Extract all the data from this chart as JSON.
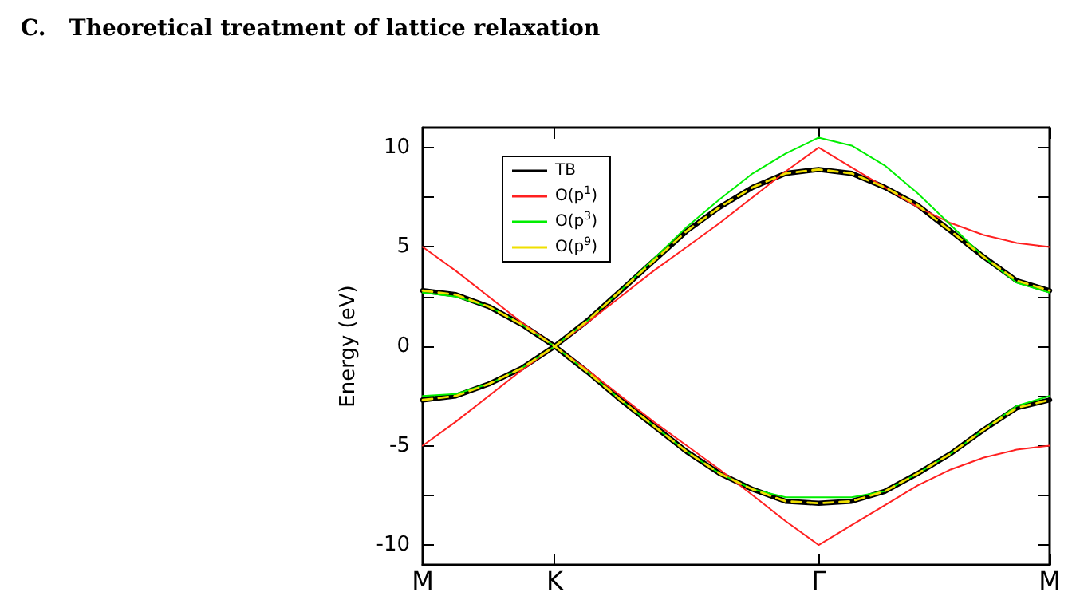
{
  "chart_data": {
    "type": "line",
    "title": "C.   Theoretical treatment of lattice relaxation",
    "ylabel": "Energy (eV)",
    "categories": [
      "M",
      null,
      null,
      null,
      "K",
      null,
      null,
      null,
      null,
      null,
      null,
      null,
      "Γ",
      null,
      null,
      null,
      null,
      null,
      null,
      "M"
    ],
    "series": [
      {
        "name": "TB",
        "color": "#000000",
        "line_style": "solid",
        "values": [
          2.8,
          2.6,
          2.0,
          1.1,
          0,
          1.3,
          2.8,
          4.3,
          5.8,
          7.0,
          8.0,
          8.7,
          8.9,
          8.7,
          8.0,
          7.1,
          5.8,
          4.5,
          3.3,
          2.8
        ]
      },
      {
        "color": "#000000",
        "line_style": "solid",
        "values": [
          -2.7,
          -2.5,
          -1.9,
          -1.1,
          0,
          -1.3,
          -2.7,
          -4.0,
          -5.3,
          -6.4,
          -7.2,
          -7.8,
          -7.9,
          -7.8,
          -7.3,
          -6.4,
          -5.4,
          -4.2,
          -3.1,
          -2.7
        ]
      },
      {
        "name": "O(p$^{1}$)",
        "color": "#ff2020",
        "line_style": "solid",
        "values": [
          5,
          3.8,
          2.5,
          1.2,
          0,
          1.2,
          2.5,
          3.8,
          5,
          6.2,
          7.5,
          8.8,
          10,
          9.0,
          8.0,
          7.0,
          6.2,
          5.6,
          5.2,
          5
        ]
      },
      {
        "color": "#ff2020",
        "line_style": "solid",
        "values": [
          -5,
          -3.8,
          -2.5,
          -1.2,
          0,
          -1.2,
          -2.5,
          -3.8,
          -5,
          -6.2,
          -7.5,
          -8.8,
          -10,
          -9.0,
          -8.0,
          -7.0,
          -6.2,
          -5.6,
          -5.2,
          -5
        ]
      },
      {
        "name": "O(p$^{3}$)",
        "color": "#00ee00",
        "line_style": "solid",
        "values": [
          2.7,
          2.5,
          2.0,
          1.1,
          0,
          1.3,
          2.8,
          4.4,
          6.0,
          7.4,
          8.7,
          9.7,
          10.5,
          10.1,
          9.1,
          7.7,
          6.1,
          4.5,
          3.2,
          2.7
        ]
      },
      {
        "color": "#00ee00",
        "line_style": "solid",
        "values": [
          -2.5,
          -2.4,
          -1.9,
          -1.1,
          0,
          -1.3,
          -2.7,
          -4.0,
          -5.3,
          -6.4,
          -7.2,
          -7.6,
          -7.6,
          -7.6,
          -7.3,
          -6.4,
          -5.4,
          -4.2,
          -3.0,
          -2.5
        ]
      },
      {
        "name": "O(p$^{9}$)",
        "color": "#f0e000",
        "line_style": "dashed",
        "values": [
          2.8,
          2.6,
          2.0,
          1.1,
          0,
          1.3,
          2.8,
          4.3,
          5.8,
          7.0,
          8.0,
          8.7,
          8.9,
          8.7,
          8.0,
          7.1,
          5.8,
          4.5,
          3.3,
          2.8
        ]
      },
      {
        "color": "#f0e000",
        "line_style": "dashed",
        "values": [
          -2.7,
          -2.5,
          -1.9,
          -1.1,
          0,
          -1.3,
          -2.7,
          -4.0,
          -5.3,
          -6.4,
          -7.2,
          -7.8,
          -7.9,
          -7.8,
          -7.3,
          -6.4,
          -5.4,
          -4.2,
          -3.1,
          -2.7
        ]
      }
    ],
    "ylim": [
      -11,
      11
    ],
    "yticks": [
      -10,
      {
        "value": -7.5,
        "label": null
      },
      -5,
      {
        "value": -2.5,
        "label": null
      },
      0,
      {
        "value": 2.5,
        "label": null
      },
      5,
      {
        "value": 7.5,
        "label": null
      },
      10
    ],
    "grid": false,
    "legend": "top left",
    "marker": "none"
  }
}
